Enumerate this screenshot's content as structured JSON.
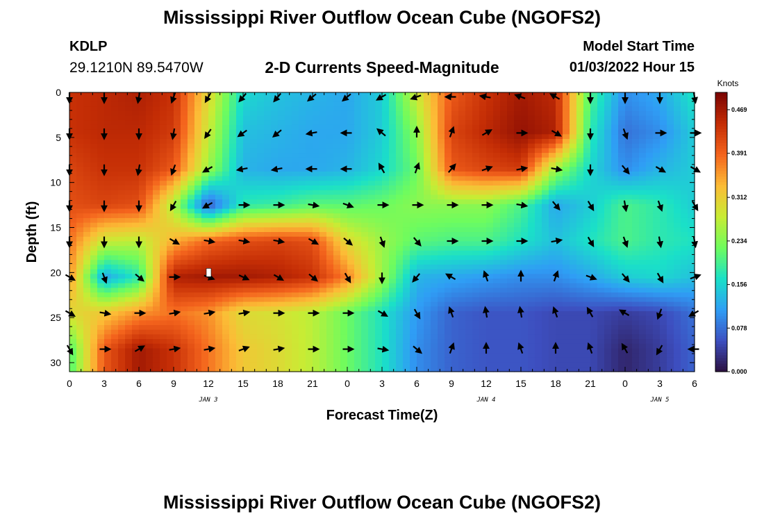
{
  "header": {
    "title": "Mississippi River Outflow Ocean Cube (NGOFS2)",
    "station": "KDLP",
    "coords": "29.1210N  89.5470W",
    "subtitle": "2-D Currents Speed-Magnitude",
    "model_start_label": "Model Start Time",
    "model_start_value": "01/03/2022 Hour 15"
  },
  "footer": {
    "title": "Mississippi River Outflow Ocean Cube (NGOFS2)"
  },
  "chart_data": {
    "type": "heatmap",
    "title": "2-D Currents Speed-Magnitude",
    "xlabel": "Forecast Time(Z)",
    "ylabel": "Depth (ft)",
    "x_ticks": [
      "0",
      "3",
      "6",
      "9",
      "12",
      "15",
      "18",
      "21",
      "0",
      "3",
      "6",
      "9",
      "12",
      "15",
      "18",
      "21",
      "0",
      "3",
      "6"
    ],
    "x_hours": [
      0,
      3,
      6,
      9,
      12,
      15,
      18,
      21,
      24,
      27,
      30,
      33,
      36,
      39,
      42,
      45,
      48,
      51,
      54
    ],
    "date_labels": [
      {
        "hour": 12,
        "text": "JAN 3"
      },
      {
        "hour": 36,
        "text": "JAN 4"
      },
      {
        "hour": 51,
        "text": "JAN 5"
      }
    ],
    "y_ticks": [
      0,
      5,
      10,
      15,
      20,
      25,
      30
    ],
    "ylim": [
      0,
      31
    ],
    "xlim": [
      0,
      54
    ],
    "colorbar": {
      "unit": "Knots",
      "ticks": [
        0.0,
        0.078,
        0.156,
        0.234,
        0.312,
        0.391,
        0.469
      ],
      "tick_labels": [
        "0.000",
        "0.078",
        "0.156",
        "0.234",
        "0.312",
        "0.391",
        "0.469"
      ],
      "range": [
        0,
        0.5
      ],
      "colors": [
        "#2b0f3e",
        "#3d4fc0",
        "#2f9df5",
        "#1ae0c8",
        "#6efc5e",
        "#c8ec34",
        "#fcbc36",
        "#f4641d",
        "#c42d05",
        "#7a0403"
      ]
    },
    "grid_depths": [
      0.5,
      4.5,
      8.5,
      12.5,
      16.5,
      20.5,
      24.5,
      28.5
    ],
    "grid_hours": [
      0,
      3,
      6,
      9,
      12,
      15,
      18,
      21,
      24,
      27,
      30,
      33,
      36,
      39,
      42,
      45,
      48,
      51,
      54
    ],
    "speed": [
      [
        0.44,
        0.45,
        0.46,
        0.44,
        0.3,
        0.16,
        0.14,
        0.13,
        0.12,
        0.15,
        0.28,
        0.4,
        0.44,
        0.47,
        0.45,
        0.2,
        0.1,
        0.12,
        0.17
      ],
      [
        0.44,
        0.45,
        0.45,
        0.43,
        0.28,
        0.14,
        0.13,
        0.12,
        0.12,
        0.15,
        0.24,
        0.42,
        0.45,
        0.48,
        0.46,
        0.18,
        0.08,
        0.1,
        0.15
      ],
      [
        0.42,
        0.44,
        0.44,
        0.4,
        0.25,
        0.13,
        0.12,
        0.12,
        0.13,
        0.16,
        0.22,
        0.4,
        0.42,
        0.43,
        0.25,
        0.16,
        0.1,
        0.13,
        0.15
      ],
      [
        0.41,
        0.42,
        0.41,
        0.26,
        0.06,
        0.18,
        0.19,
        0.21,
        0.21,
        0.22,
        0.24,
        0.24,
        0.24,
        0.2,
        0.12,
        0.15,
        0.2,
        0.18,
        0.15
      ],
      [
        0.38,
        0.28,
        0.27,
        0.34,
        0.39,
        0.41,
        0.42,
        0.41,
        0.3,
        0.25,
        0.21,
        0.2,
        0.2,
        0.17,
        0.14,
        0.17,
        0.2,
        0.18,
        0.17
      ],
      [
        0.36,
        0.12,
        0.18,
        0.46,
        0.47,
        0.47,
        0.46,
        0.44,
        0.37,
        0.25,
        0.13,
        0.12,
        0.11,
        0.1,
        0.1,
        0.12,
        0.15,
        0.16,
        0.14
      ],
      [
        0.3,
        0.32,
        0.36,
        0.38,
        0.36,
        0.3,
        0.29,
        0.27,
        0.22,
        0.17,
        0.11,
        0.07,
        0.06,
        0.06,
        0.05,
        0.05,
        0.04,
        0.05,
        0.08
      ],
      [
        0.2,
        0.4,
        0.47,
        0.44,
        0.38,
        0.32,
        0.3,
        0.27,
        0.22,
        0.17,
        0.1,
        0.07,
        0.06,
        0.06,
        0.05,
        0.05,
        0.02,
        0.04,
        0.07
      ]
    ],
    "direction_deg": [
      [
        180,
        180,
        190,
        200,
        210,
        220,
        220,
        230,
        230,
        240,
        250,
        270,
        280,
        290,
        300,
        180,
        180,
        180,
        170
      ],
      [
        180,
        180,
        180,
        190,
        215,
        235,
        230,
        260,
        270,
        310,
        0,
        20,
        60,
        90,
        120,
        180,
        160,
        90,
        90
      ],
      [
        180,
        180,
        190,
        200,
        240,
        260,
        260,
        270,
        270,
        330,
        20,
        40,
        70,
        80,
        100,
        180,
        140,
        120,
        120
      ],
      [
        180,
        180,
        180,
        210,
        240,
        90,
        90,
        100,
        110,
        90,
        90,
        90,
        90,
        100,
        140,
        150,
        170,
        160,
        150
      ],
      [
        180,
        180,
        180,
        120,
        100,
        100,
        100,
        120,
        130,
        160,
        140,
        90,
        90,
        90,
        80,
        150,
        160,
        170,
        170
      ],
      [
        120,
        160,
        130,
        90,
        110,
        115,
        120,
        130,
        150,
        180,
        220,
        300,
        340,
        0,
        20,
        110,
        140,
        150,
        70
      ],
      [
        120,
        100,
        90,
        80,
        80,
        80,
        90,
        90,
        90,
        120,
        150,
        340,
        350,
        350,
        340,
        330,
        300,
        200,
        240
      ],
      [
        150,
        90,
        60,
        80,
        80,
        70,
        80,
        90,
        90,
        100,
        130,
        20,
        0,
        340,
        0,
        340,
        330,
        210,
        270
      ]
    ],
    "marker": {
      "hour": 12,
      "depth": 20,
      "label": "current-time"
    }
  }
}
